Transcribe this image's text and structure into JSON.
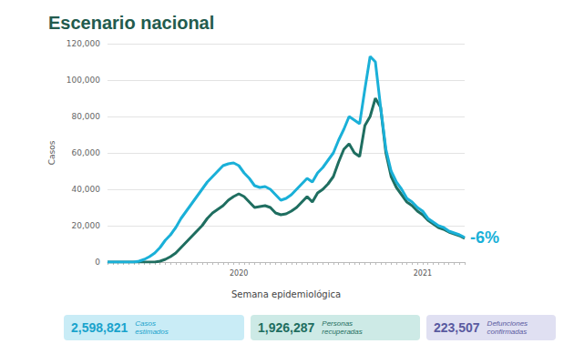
{
  "chart_data": {
    "type": "line",
    "title": "Escenario nacional",
    "x_label": "Semana epidemiológica",
    "y_label": "Casos",
    "categories": [
      null,
      null,
      null,
      null,
      null,
      null,
      null,
      null,
      null,
      null,
      null,
      null,
      null,
      null,
      null,
      null,
      null,
      null,
      null,
      null,
      null,
      null,
      null,
      null,
      null,
      "2020",
      null,
      null,
      null,
      null,
      null,
      null,
      null,
      null,
      null,
      null,
      null,
      null,
      null,
      null,
      null,
      null,
      null,
      null,
      null,
      null,
      null,
      null,
      null,
      null,
      null,
      null,
      null,
      null,
      null,
      null,
      null,
      null,
      null,
      null,
      "2021",
      null,
      null,
      null,
      null,
      null,
      null,
      null,
      null
    ],
    "series": [
      {
        "color": "#1ab0d8",
        "end_label": "-6%",
        "values": [
          0,
          0,
          0,
          0,
          0,
          0,
          500,
          1500,
          3000,
          5000,
          8000,
          12000,
          15000,
          19000,
          24000,
          28000,
          32000,
          36000,
          40000,
          44000,
          47000,
          50000,
          53000,
          54000,
          54500,
          53000,
          49000,
          46000,
          42000,
          41000,
          41500,
          40000,
          37000,
          34000,
          35000,
          37000,
          40000,
          43000,
          46000,
          44000,
          49000,
          52000,
          56000,
          60000,
          67000,
          73000,
          80000,
          78000,
          76000,
          95000,
          113000,
          110000,
          85000,
          62000,
          50000,
          44000,
          40000,
          35000,
          33000,
          30000,
          28000,
          24000,
          22000,
          20000,
          19000,
          17000,
          16000,
          15000,
          13500
        ]
      },
      {
        "color": "#1f6e60",
        "values": [
          0,
          0,
          0,
          0,
          0,
          0,
          0,
          0,
          0,
          0,
          500,
          1500,
          3000,
          5000,
          8000,
          11000,
          14000,
          17000,
          20000,
          24000,
          27000,
          29000,
          31000,
          34000,
          36000,
          37500,
          36000,
          33000,
          30000,
          30500,
          31000,
          30000,
          27000,
          26000,
          26500,
          28000,
          30000,
          33000,
          36000,
          33000,
          38000,
          40000,
          43000,
          47000,
          55000,
          62000,
          65000,
          60000,
          58000,
          75000,
          80000,
          90000,
          85000,
          60000,
          47000,
          41000,
          37000,
          33000,
          31000,
          28000,
          26000,
          23000,
          21000,
          19000,
          18000,
          16500,
          15500,
          14500,
          13000
        ]
      }
    ],
    "ylim": [
      0,
      120000
    ],
    "yticks": [
      0,
      {
        "value": 20000,
        "label": "20,000"
      },
      {
        "value": 40000,
        "label": "40,000"
      },
      {
        "value": 60000,
        "label": "60,000"
      },
      {
        "value": 80000,
        "label": "80,000"
      },
      {
        "value": 100000,
        "label": "100,000"
      },
      {
        "value": 120000,
        "label": "120,000"
      }
    ],
    "grid": true
  },
  "summary_boxes": [
    {
      "value": "2,598,821",
      "label": "Casos estimados"
    },
    {
      "value": "1,926,287",
      "label": "Personas recuperadas"
    },
    {
      "value": "223,507",
      "label": "Defunciones confirmadas"
    }
  ]
}
